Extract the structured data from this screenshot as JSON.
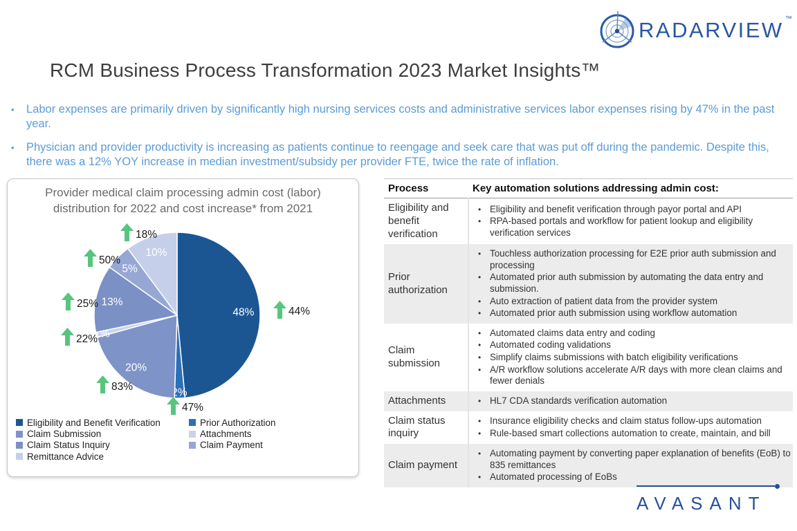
{
  "header": {
    "brand": "RADARVIEW",
    "brand_tm": "™",
    "title": "RCM Business Process Transformation 2023 Market Insights™"
  },
  "insights": [
    "Labor expenses are primarily driven by significantly high nursing services costs and administrative services labor expenses rising by 47% in the past year.",
    "Physician and provider productivity is increasing as patients continue to reengage and seek care that was put off during the pandemic. Despite this, there was a 12% YOY increase in median investment/subsidy per provider FTE, twice the rate of inflation."
  ],
  "chart_data": {
    "type": "pie",
    "title": "Provider medical claim processing admin cost (labor) distribution for 2022 and cost increase* from 2021",
    "unit": "%",
    "legend_position": "bottom",
    "series": [
      {
        "name": "Eligibility and Benefit Verification",
        "value": 48,
        "increase": "44%",
        "color": "#1B5693"
      },
      {
        "name": "Prior Authorization",
        "value": 2,
        "increase": "47%",
        "color": "#2D6FB7"
      },
      {
        "name": "Claim Submission",
        "value": 20,
        "increase": "83%",
        "color": "#7E93C8"
      },
      {
        "name": "Attachments",
        "value": 1,
        "increase": "22%",
        "color": "#C9D3EB"
      },
      {
        "name": "Claim Status Inquiry",
        "value": 13,
        "increase": "25%",
        "color": "#7B90C5"
      },
      {
        "name": "Claim Payment",
        "value": 5,
        "increase": "50%",
        "color": "#97A7D4"
      },
      {
        "name": "Remittance Advice",
        "value": 10,
        "increase": "18%",
        "color": "#C5CFE9"
      }
    ],
    "arrow_color": "#57C57E"
  },
  "table": {
    "headers": [
      "Process",
      "Key automation solutions addressing admin cost:"
    ],
    "rows": [
      {
        "process": "Eligibility and benefit verification",
        "solutions": [
          "Eligibility and benefit verification through payor portal and API",
          "RPA-based portals and workflow for patient lookup and eligibility verification services"
        ]
      },
      {
        "process": "Prior authorization",
        "solutions": [
          "Touchless authorization processing for E2E prior auth submission and processing",
          "Automated prior auth submission by automating the data entry and submission.",
          "Auto extraction of patient data from the provider system",
          "Automated prior auth submission using workflow automation"
        ]
      },
      {
        "process": "Claim submission",
        "solutions": [
          "Automated claims data entry and coding",
          "Automated coding validations",
          "Simplify claims submissions with batch eligibility verifications",
          "A/R workflow solutions accelerate A/R days with more clean claims and fewer denials"
        ]
      },
      {
        "process": "Attachments",
        "solutions": [
          "HL7 CDA standards verification automation"
        ]
      },
      {
        "process": "Claim status inquiry",
        "solutions": [
          "Insurance eligibility checks and claim status follow-ups automation",
          "Rule-based smart collections automation to create, maintain, and bill"
        ]
      },
      {
        "process": "Claim payment",
        "solutions": [
          "Automating payment by converting paper explanation of benefits (EoB) to 835 remittances",
          "Automated processing of EoBs"
        ]
      }
    ]
  },
  "footer": {
    "brand": "AVASANT"
  },
  "colors": {
    "accent_text": "#5B9BD5",
    "brand_blue": "#2A57A4",
    "arrow_green": "#57C57E"
  }
}
